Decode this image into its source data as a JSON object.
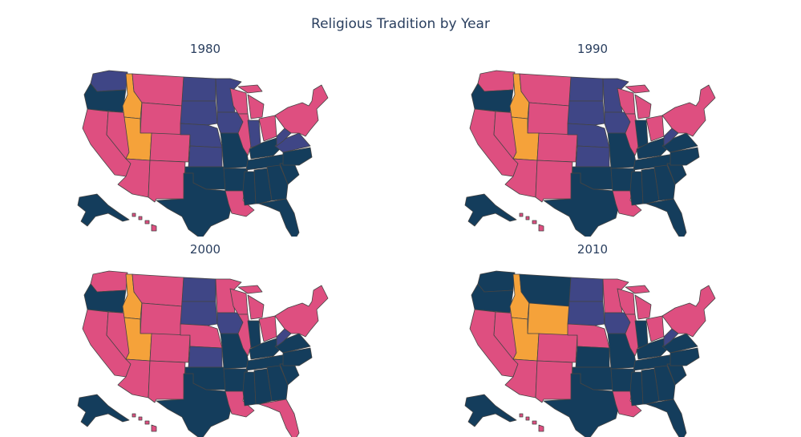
{
  "title": "Religious Tradition by Year",
  "colors": {
    "navy": "#143d5c",
    "indigo": "#3f4686",
    "pink": "#de4f80",
    "orange": "#f5a23a",
    "border": "#444444"
  },
  "panels": [
    {
      "year": "1980",
      "regions": {
        "wa": "indigo",
        "or": "navy",
        "ca": "pink",
        "nv": "pink",
        "id": "orange",
        "mt": "pink",
        "wy": "pink",
        "ut": "orange",
        "az": "pink",
        "co": "pink",
        "nm": "pink",
        "nd": "indigo",
        "sd": "indigo",
        "ne": "indigo",
        "ks": "indigo",
        "ok": "navy",
        "tx": "navy",
        "mn": "indigo",
        "ia": "indigo",
        "mo": "navy",
        "ar": "navy",
        "la": "pink",
        "wi": "pink",
        "il": "pink",
        "mi": "pink",
        "in": "indigo",
        "oh": "pink",
        "ky": "navy",
        "tn": "navy",
        "ms": "navy",
        "al": "navy",
        "ga": "navy",
        "fl": "navy",
        "sc": "navy",
        "nc": "navy",
        "va": "indigo",
        "wv": "indigo",
        "ne_states": "pink",
        "ak": "navy",
        "hi": "pink"
      }
    },
    {
      "year": "1990",
      "regions": {
        "wa": "pink",
        "or": "navy",
        "ca": "pink",
        "nv": "pink",
        "id": "orange",
        "mt": "pink",
        "wy": "pink",
        "ut": "orange",
        "az": "pink",
        "co": "pink",
        "nm": "pink",
        "nd": "indigo",
        "sd": "indigo",
        "ne": "indigo",
        "ks": "indigo",
        "ok": "navy",
        "tx": "navy",
        "mn": "indigo",
        "ia": "indigo",
        "mo": "navy",
        "ar": "navy",
        "la": "pink",
        "wi": "pink",
        "il": "pink",
        "mi": "pink",
        "in": "navy",
        "oh": "pink",
        "ky": "navy",
        "tn": "navy",
        "ms": "navy",
        "al": "navy",
        "ga": "navy",
        "fl": "navy",
        "sc": "navy",
        "nc": "navy",
        "va": "navy",
        "wv": "indigo",
        "ne_states": "pink",
        "ak": "navy",
        "hi": "pink"
      }
    },
    {
      "year": "2000",
      "regions": {
        "wa": "pink",
        "or": "navy",
        "ca": "pink",
        "nv": "pink",
        "id": "orange",
        "mt": "pink",
        "wy": "pink",
        "ut": "orange",
        "az": "pink",
        "co": "pink",
        "nm": "pink",
        "nd": "indigo",
        "sd": "indigo",
        "ne": "pink",
        "ks": "indigo",
        "ok": "navy",
        "tx": "navy",
        "mn": "pink",
        "ia": "indigo",
        "mo": "navy",
        "ar": "navy",
        "la": "pink",
        "wi": "pink",
        "il": "pink",
        "mi": "pink",
        "in": "navy",
        "oh": "pink",
        "ky": "navy",
        "tn": "navy",
        "ms": "navy",
        "al": "navy",
        "ga": "navy",
        "fl": "pink",
        "sc": "navy",
        "nc": "navy",
        "va": "navy",
        "wv": "indigo",
        "ne_states": "pink",
        "ak": "navy",
        "hi": "pink"
      }
    },
    {
      "year": "2010",
      "regions": {
        "wa": "navy",
        "or": "navy",
        "ca": "pink",
        "nv": "pink",
        "id": "orange",
        "mt": "navy",
        "wy": "orange",
        "ut": "orange",
        "az": "pink",
        "co": "pink",
        "nm": "pink",
        "nd": "indigo",
        "sd": "indigo",
        "ne": "pink",
        "ks": "navy",
        "ok": "navy",
        "tx": "navy",
        "mn": "pink",
        "ia": "indigo",
        "mo": "navy",
        "ar": "navy",
        "la": "pink",
        "wi": "pink",
        "il": "pink",
        "mi": "pink",
        "in": "navy",
        "oh": "pink",
        "ky": "navy",
        "tn": "navy",
        "ms": "navy",
        "al": "navy",
        "ga": "navy",
        "fl": "navy",
        "sc": "navy",
        "nc": "navy",
        "va": "navy",
        "wv": "indigo",
        "ne_states": "pink",
        "ak": "navy",
        "hi": "pink"
      }
    }
  ]
}
